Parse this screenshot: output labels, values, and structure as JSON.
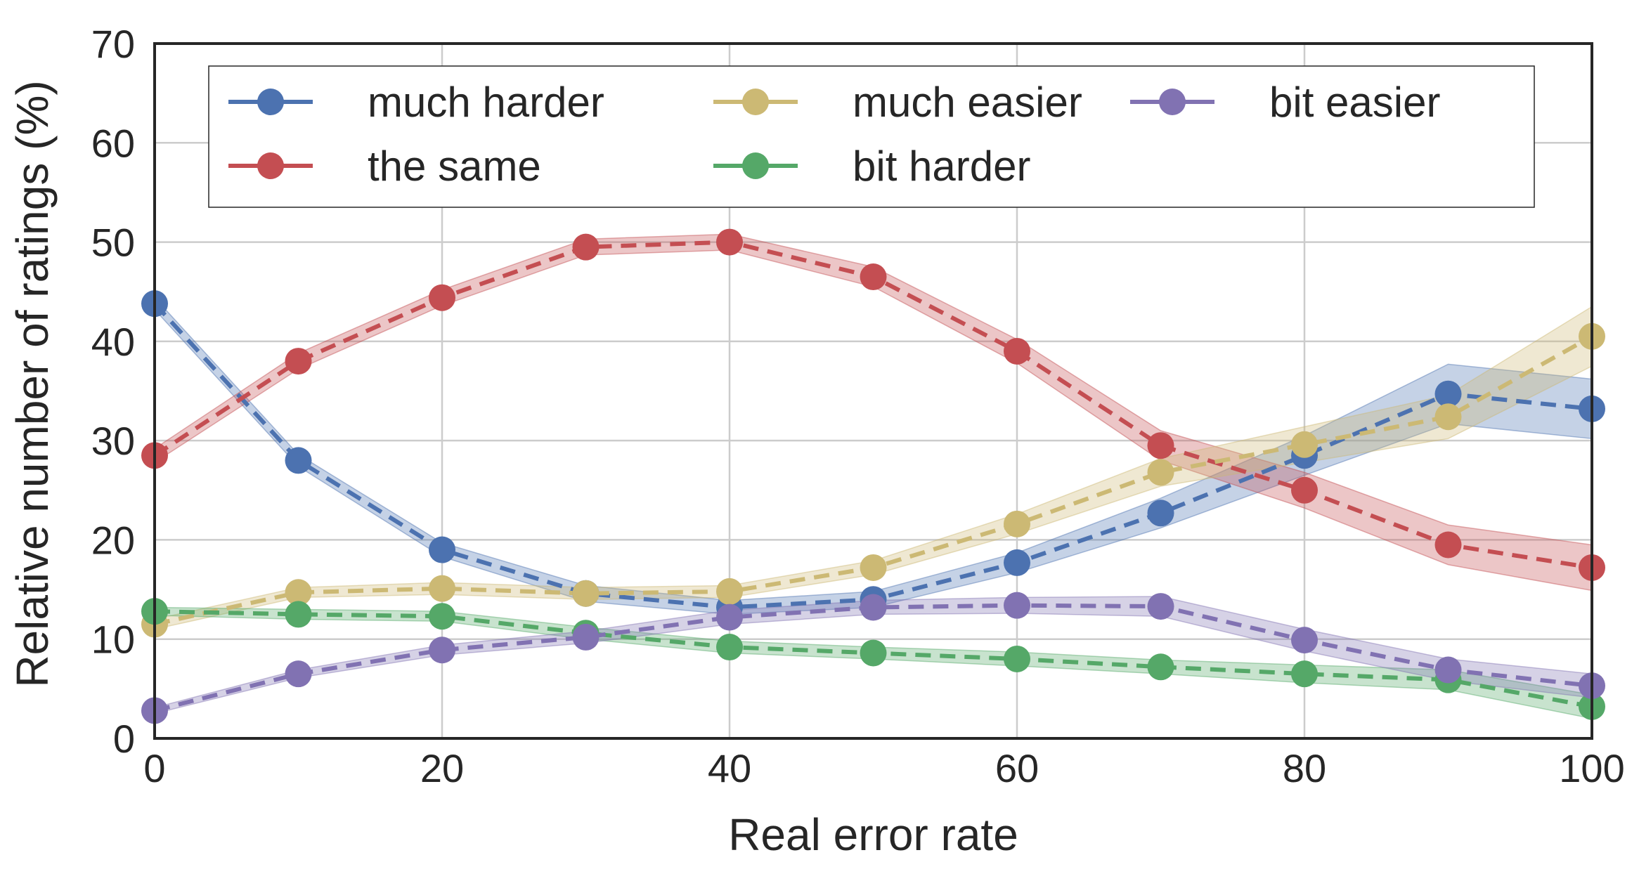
{
  "chart_data": {
    "type": "line",
    "title": "",
    "xlabel": "Real error rate",
    "ylabel": "Relative number of ratings (%)",
    "xlim": [
      0,
      100
    ],
    "ylim": [
      0,
      70
    ],
    "xticks": [
      0,
      20,
      40,
      60,
      80,
      100
    ],
    "yticks": [
      0,
      10,
      20,
      30,
      40,
      50,
      60,
      70
    ],
    "grid": true,
    "legend_placement": "top",
    "legend_columns": 3,
    "x": [
      0,
      10,
      20,
      30,
      40,
      50,
      60,
      70,
      80,
      90,
      100
    ],
    "series": [
      {
        "name": "much harder",
        "color": "#4c72b0",
        "values": [
          43.8,
          28.0,
          19.0,
          14.6,
          13.2,
          14.0,
          17.7,
          22.7,
          28.5,
          34.7,
          33.2
        ],
        "band": [
          0.6,
          0.6,
          0.7,
          0.8,
          0.7,
          0.8,
          1.0,
          1.5,
          2.0,
          3.0,
          3.0
        ]
      },
      {
        "name": "the same",
        "color": "#c44e52",
        "values": [
          28.5,
          38.0,
          44.4,
          49.5,
          50.0,
          46.5,
          39.0,
          29.5,
          25.0,
          19.5,
          17.2
        ],
        "band": [
          0.7,
          0.8,
          0.8,
          0.8,
          0.8,
          1.0,
          1.2,
          1.5,
          1.8,
          2.0,
          2.3
        ]
      },
      {
        "name": "much easier",
        "color": "#ccb974",
        "values": [
          11.5,
          14.7,
          15.1,
          14.6,
          14.8,
          17.2,
          21.6,
          26.8,
          29.6,
          32.4,
          40.5
        ],
        "band": [
          0.5,
          0.5,
          0.6,
          0.6,
          0.6,
          0.7,
          1.0,
          1.4,
          1.8,
          2.2,
          3.0
        ]
      },
      {
        "name": "bit harder",
        "color": "#55a868",
        "values": [
          12.8,
          12.5,
          12.3,
          10.6,
          9.2,
          8.6,
          8.0,
          7.2,
          6.5,
          5.9,
          3.2
        ],
        "band": [
          0.4,
          0.5,
          0.5,
          0.6,
          0.6,
          0.6,
          0.7,
          0.7,
          0.9,
          1.0,
          1.2
        ]
      },
      {
        "name": "bit easier",
        "color": "#8172b2",
        "values": [
          2.8,
          6.5,
          8.9,
          10.2,
          12.2,
          13.2,
          13.4,
          13.3,
          9.9,
          6.9,
          5.3
        ],
        "band": [
          0.3,
          0.4,
          0.5,
          0.6,
          0.7,
          0.7,
          0.8,
          1.0,
          1.1,
          1.1,
          1.2
        ]
      }
    ]
  }
}
